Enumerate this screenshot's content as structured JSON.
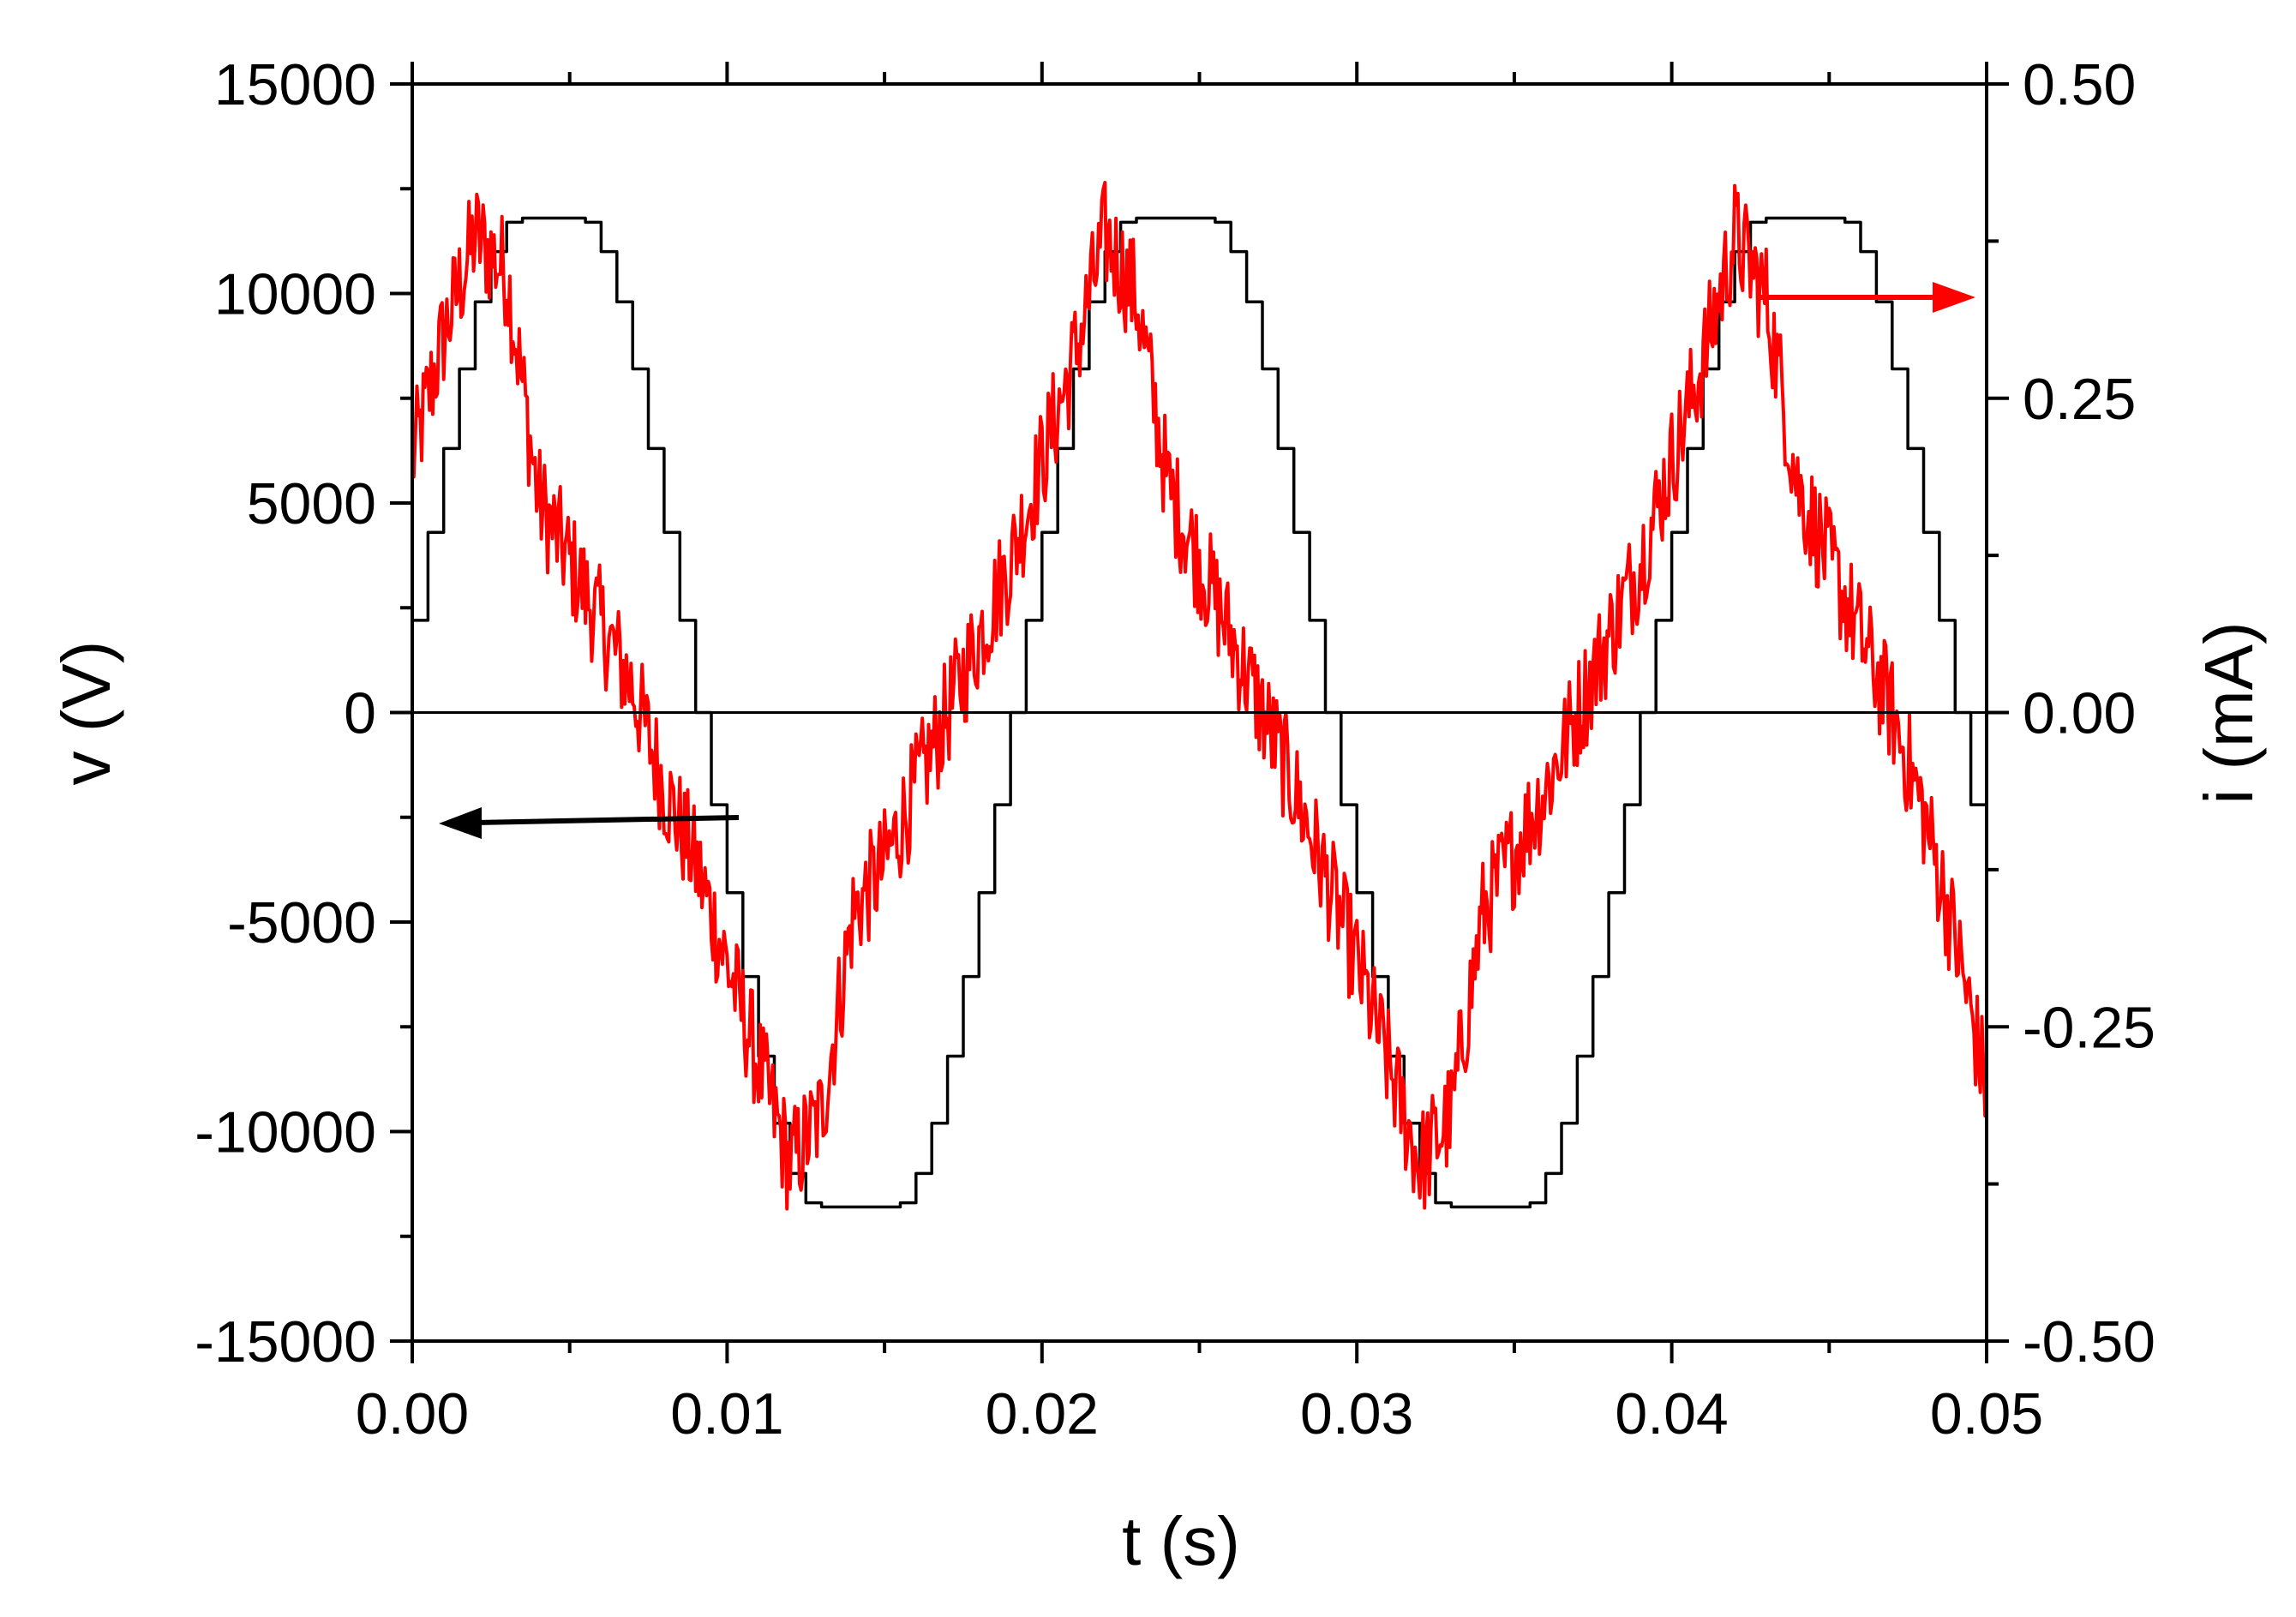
{
  "chart_data": {
    "type": "line",
    "xlabel": "t (s)",
    "ylabel": "v (V)",
    "y2label": "i (mA)",
    "xlim": [
      0,
      0.05
    ],
    "ylim": [
      -15000,
      15000
    ],
    "y2lim": [
      -0.5,
      0.5
    ],
    "x_ticks": [
      "0.00",
      "0.01",
      "0.02",
      "0.03",
      "0.04",
      "0.05"
    ],
    "y_ticks": [
      "15000",
      "10000",
      "5000",
      "0",
      "-5000",
      "-10000",
      "-15000"
    ],
    "y2_ticks": [
      "0.50",
      "0.25",
      "0.00",
      "-0.25",
      "-0.50"
    ],
    "grid": false,
    "colors": {
      "voltage": "#000000",
      "current": "#ff0000",
      "zero_line": "#000000"
    },
    "series": [
      {
        "axis": "left",
        "color": "#000000",
        "description": "trapezoid-clipped sine, amplitude ~11800 V, period 0.02 s, zero-crossing rising at t≈-0.0006 s",
        "x": [
          0.0,
          0.0005,
          0.001,
          0.0015,
          0.002,
          0.0025,
          0.003,
          0.0035,
          0.004,
          0.0045,
          0.005,
          0.0055,
          0.006,
          0.0065,
          0.007,
          0.0075,
          0.008,
          0.0085,
          0.009,
          0.0095,
          0.01,
          0.0105,
          0.011,
          0.0115,
          0.012,
          0.0125,
          0.013,
          0.0135,
          0.014,
          0.0145,
          0.015,
          0.0155,
          0.016,
          0.0165,
          0.017,
          0.0175,
          0.018,
          0.0185,
          0.019,
          0.0195,
          0.02,
          0.0205,
          0.021,
          0.0215,
          0.022,
          0.0225,
          0.023,
          0.0235,
          0.024,
          0.0245,
          0.025,
          0.0255,
          0.026,
          0.0265,
          0.027,
          0.0275,
          0.028,
          0.0285,
          0.029,
          0.0295,
          0.03,
          0.0305,
          0.031,
          0.0315,
          0.032,
          0.0325,
          0.033,
          0.0335,
          0.034,
          0.0345,
          0.035,
          0.0355,
          0.036,
          0.0365,
          0.037,
          0.0375,
          0.038,
          0.0385,
          0.039,
          0.0395,
          0.04,
          0.0405,
          0.041,
          0.0415,
          0.042,
          0.0425,
          0.043,
          0.0435,
          0.044,
          0.0445,
          0.045,
          0.0455,
          0.046,
          0.0465,
          0.047,
          0.0475,
          0.048,
          0.0485,
          0.049,
          0.0495,
          0.05
        ],
        "values": [
          2200,
          4300,
          6300,
          8200,
          9800,
          11000,
          11700,
          11800,
          11800,
          11800,
          11800,
          11700,
          11000,
          9800,
          8200,
          6300,
          4300,
          2200,
          0,
          -2200,
          -4300,
          -6300,
          -8200,
          -9800,
          -11000,
          -11700,
          -11800,
          -11800,
          -11800,
          -11800,
          -11800,
          -11700,
          -11000,
          -9800,
          -8200,
          -6300,
          -4300,
          -2200,
          0,
          2200,
          4300,
          6300,
          8200,
          9800,
          11000,
          11700,
          11800,
          11800,
          11800,
          11800,
          11800,
          11700,
          11000,
          9800,
          8200,
          6300,
          4300,
          2200,
          0,
          -2200,
          -4300,
          -6300,
          -8200,
          -9800,
          -11000,
          -11700,
          -11800,
          -11800,
          -11800,
          -11800,
          -11800,
          -11700,
          -11000,
          -9800,
          -8200,
          -6300,
          -4300,
          -2200,
          0,
          2200,
          4300,
          6300,
          8200,
          9800,
          11000,
          11700,
          11800,
          11800,
          11800,
          11800,
          11800,
          11700,
          11000,
          9800,
          8200,
          6300,
          4300,
          2200,
          0,
          -2200,
          -2000
        ]
      },
      {
        "axis": "right",
        "color": "#ff0000",
        "description": "noisy current, peak ~0.40 mA at t≈0.002/0.022/0.042, trough ~-0.40 mA at t≈0.012/0.032",
        "x": [
          0.0,
          0.001,
          0.002,
          0.003,
          0.004,
          0.005,
          0.006,
          0.007,
          0.008,
          0.009,
          0.01,
          0.011,
          0.012,
          0.013,
          0.014,
          0.015,
          0.016,
          0.017,
          0.018,
          0.019,
          0.02,
          0.021,
          0.022,
          0.023,
          0.024,
          0.025,
          0.026,
          0.027,
          0.028,
          0.029,
          0.03,
          0.031,
          0.032,
          0.033,
          0.034,
          0.035,
          0.036,
          0.037,
          0.038,
          0.039,
          0.04,
          0.041,
          0.042,
          0.043,
          0.044,
          0.045,
          0.046,
          0.047,
          0.048,
          0.049,
          0.05
        ],
        "values": [
          0.2,
          0.3,
          0.38,
          0.35,
          0.17,
          0.12,
          0.07,
          0.02,
          -0.06,
          -0.12,
          -0.2,
          -0.28,
          -0.36,
          -0.32,
          -0.16,
          -0.12,
          -0.06,
          0.0,
          0.06,
          0.12,
          0.2,
          0.28,
          0.38,
          0.33,
          0.18,
          0.12,
          0.06,
          0.0,
          -0.06,
          -0.13,
          -0.2,
          -0.28,
          -0.36,
          -0.32,
          -0.16,
          -0.11,
          -0.06,
          0.0,
          0.06,
          0.12,
          0.2,
          0.28,
          0.38,
          0.33,
          0.18,
          0.12,
          0.06,
          0.0,
          -0.08,
          -0.18,
          -0.3
        ]
      }
    ]
  }
}
